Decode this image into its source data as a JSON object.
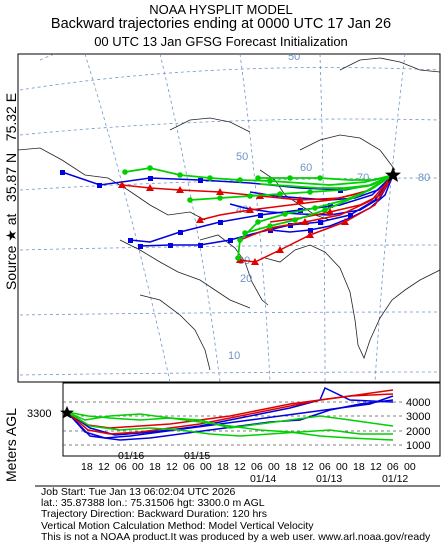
{
  "header": {
    "line1": "NOAA HYSPLIT MODEL",
    "line2": "Backward trajectories ending at 0000 UTC 17 Jan 26",
    "line3": "00 UTC 13 Jan    GFSG  Forecast Initialization"
  },
  "side_label": {
    "source_prefix": "Source",
    "source_at": "at",
    "latitude": "35.87 N",
    "longitude": "75.32 E"
  },
  "map": {
    "latitude_labels": [
      "50",
      "60",
      "50",
      "40",
      "30",
      "20",
      "10"
    ],
    "longitude_labels": [
      "70",
      "80"
    ],
    "source_marker": "black-star",
    "colors": {
      "red": "#e00000",
      "blue": "#0000e0",
      "green": "#00d000",
      "grid": "#6f95c8",
      "coast": "#222222"
    }
  },
  "profile": {
    "y_axis_label": "Meters AGL",
    "start_height_label": "3300",
    "height_ticks": [
      "4000",
      "3000",
      "2000",
      "1000"
    ],
    "hour_ticks": [
      "18",
      "12",
      "06",
      "00",
      "18",
      "12",
      "06",
      "00",
      "18",
      "12",
      "06",
      "00",
      "18",
      "12",
      "06",
      "00",
      "18",
      "12",
      "06",
      "00"
    ],
    "date_labels": [
      "01/16",
      "01/15",
      "01/14",
      "01/13",
      "01/12"
    ]
  },
  "info": {
    "job_start": "Job Start: Tue Jan 13 06:02:04 UTC 2026",
    "location": "lat.: 35.87388   lon.: 75.31506    hgt: 3300.0 m AGL",
    "blank": " ",
    "direction": "Trajectory Direction: Backward       Duration: 120 hrs",
    "vertical": "Vertical Motion Calculation Method: Model Vertical Velocity",
    "disclaimer": "This is not a NOAA product.It was produced by a web user. www.arl.noaa.gov/ready"
  }
}
